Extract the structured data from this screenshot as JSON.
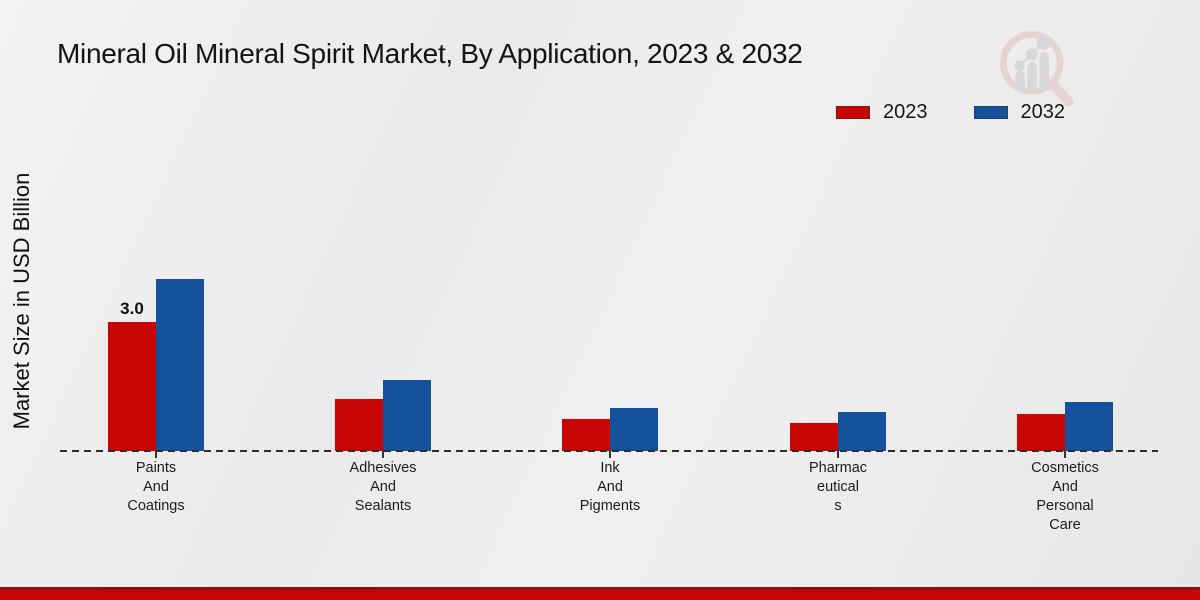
{
  "title": "Mineral Oil Mineral Spirit Market, By Application, 2023 & 2032",
  "y_axis_label": "Market Size in USD Billion",
  "legend": [
    {
      "label": "2023",
      "color": "#c80606"
    },
    {
      "label": "2032",
      "color": "#15529b"
    }
  ],
  "colors": {
    "series_2023": "#c80606",
    "series_2032": "#15529b",
    "background": "#ebebeb",
    "footer_bar": "#c30606",
    "baseline": "#2d2d2d",
    "watermark_pink": "#e5bfc0",
    "watermark_gray": "#c7c7cb"
  },
  "watermark_icon": "market-research-magnifier-bar-chart-logo",
  "chart_data": {
    "type": "bar",
    "categories": [
      "Paints And Coatings",
      "Adhesives And Sealants",
      "Ink And Pigments",
      "Pharmaceuticals",
      "Cosmetics And Personal Care"
    ],
    "category_lines": [
      [
        "Paints",
        "And",
        "Coatings"
      ],
      [
        "Adhesives",
        "And",
        "Sealants"
      ],
      [
        "Ink",
        "And",
        "Pigments"
      ],
      [
        "Pharmac",
        "eutical",
        "s"
      ],
      [
        "Cosmetics",
        "And",
        "Personal",
        "Care"
      ]
    ],
    "series": [
      {
        "name": "2023",
        "color": "#c80606",
        "values": [
          3.0,
          1.2,
          0.75,
          0.65,
          0.85
        ]
      },
      {
        "name": "2032",
        "color": "#15529b",
        "values": [
          4.0,
          1.65,
          1.0,
          0.9,
          1.15
        ]
      }
    ],
    "data_labels": [
      {
        "series": "2023",
        "category": "Paints And Coatings",
        "text": "3.0"
      }
    ],
    "title": "Mineral Oil Mineral Spirit Market, By Application, 2023 & 2032",
    "xlabel": "",
    "ylabel": "Market Size in USD Billion",
    "ylim": [
      0,
      4.5
    ],
    "grid": false,
    "baseline_style": "dashed",
    "legend_position": "top-right"
  }
}
